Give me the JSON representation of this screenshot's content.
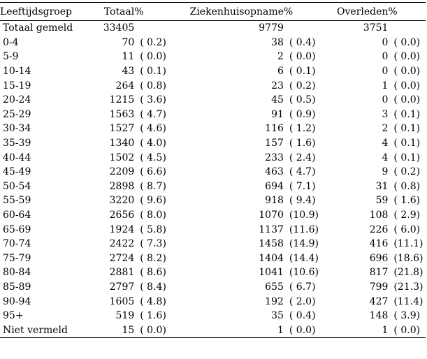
{
  "headers": {
    "group": "Leeftijdsgroep",
    "total": "Totaal",
    "total_pct": "%",
    "hospital": "Ziekenhuisopname",
    "hospital_pct": "%",
    "deceased": "Overleden",
    "deceased_pct": "%"
  },
  "rows": [
    {
      "group": "Totaal gemeld",
      "total": "33405",
      "total_pct": "",
      "hospital": "9779",
      "hospital_pct": "",
      "deceased": "3751",
      "deceased_pct": ""
    },
    {
      "group": "0-4",
      "total": "70",
      "total_pct": "( 0.2)",
      "hospital": "38",
      "hospital_pct": "( 0.4)",
      "deceased": "0",
      "deceased_pct": "( 0.0)"
    },
    {
      "group": "5-9",
      "total": "11",
      "total_pct": "( 0.0)",
      "hospital": "2",
      "hospital_pct": "( 0.0)",
      "deceased": "0",
      "deceased_pct": "( 0.0)"
    },
    {
      "group": "10-14",
      "total": "43",
      "total_pct": "( 0.1)",
      "hospital": "6",
      "hospital_pct": "( 0.1)",
      "deceased": "0",
      "deceased_pct": "( 0.0)"
    },
    {
      "group": "15-19",
      "total": "264",
      "total_pct": "( 0.8)",
      "hospital": "23",
      "hospital_pct": "( 0.2)",
      "deceased": "1",
      "deceased_pct": "( 0.0)"
    },
    {
      "group": "20-24",
      "total": "1215",
      "total_pct": "( 3.6)",
      "hospital": "45",
      "hospital_pct": "( 0.5)",
      "deceased": "0",
      "deceased_pct": "( 0.0)"
    },
    {
      "group": "25-29",
      "total": "1563",
      "total_pct": "( 4.7)",
      "hospital": "91",
      "hospital_pct": "( 0.9)",
      "deceased": "3",
      "deceased_pct": "( 0.1)"
    },
    {
      "group": "30-34",
      "total": "1527",
      "total_pct": "( 4.6)",
      "hospital": "116",
      "hospital_pct": "( 1.2)",
      "deceased": "2",
      "deceased_pct": "( 0.1)"
    },
    {
      "group": "35-39",
      "total": "1340",
      "total_pct": "( 4.0)",
      "hospital": "157",
      "hospital_pct": "( 1.6)",
      "deceased": "4",
      "deceased_pct": "( 0.1)"
    },
    {
      "group": "40-44",
      "total": "1502",
      "total_pct": "( 4.5)",
      "hospital": "233",
      "hospital_pct": "( 2.4)",
      "deceased": "4",
      "deceased_pct": "( 0.1)"
    },
    {
      "group": "45-49",
      "total": "2209",
      "total_pct": "( 6.6)",
      "hospital": "463",
      "hospital_pct": "( 4.7)",
      "deceased": "9",
      "deceased_pct": "( 0.2)"
    },
    {
      "group": "50-54",
      "total": "2898",
      "total_pct": "( 8.7)",
      "hospital": "694",
      "hospital_pct": "( 7.1)",
      "deceased": "31",
      "deceased_pct": "( 0.8)"
    },
    {
      "group": "55-59",
      "total": "3220",
      "total_pct": "( 9.6)",
      "hospital": "918",
      "hospital_pct": "( 9.4)",
      "deceased": "59",
      "deceased_pct": "( 1.6)"
    },
    {
      "group": "60-64",
      "total": "2656",
      "total_pct": "( 8.0)",
      "hospital": "1070",
      "hospital_pct": "(10.9)",
      "deceased": "108",
      "deceased_pct": "( 2.9)"
    },
    {
      "group": "65-69",
      "total": "1924",
      "total_pct": "( 5.8)",
      "hospital": "1137",
      "hospital_pct": "(11.6)",
      "deceased": "226",
      "deceased_pct": "( 6.0)"
    },
    {
      "group": "70-74",
      "total": "2422",
      "total_pct": "( 7.3)",
      "hospital": "1458",
      "hospital_pct": "(14.9)",
      "deceased": "416",
      "deceased_pct": "(11.1)"
    },
    {
      "group": "75-79",
      "total": "2724",
      "total_pct": "( 8.2)",
      "hospital": "1404",
      "hospital_pct": "(14.4)",
      "deceased": "696",
      "deceased_pct": "(18.6)"
    },
    {
      "group": "80-84",
      "total": "2881",
      "total_pct": "( 8.6)",
      "hospital": "1041",
      "hospital_pct": "(10.6)",
      "deceased": "817",
      "deceased_pct": "(21.8)"
    },
    {
      "group": "85-89",
      "total": "2797",
      "total_pct": "( 8.4)",
      "hospital": "655",
      "hospital_pct": "( 6.7)",
      "deceased": "799",
      "deceased_pct": "(21.3)"
    },
    {
      "group": "90-94",
      "total": "1605",
      "total_pct": "( 4.8)",
      "hospital": "192",
      "hospital_pct": "( 2.0)",
      "deceased": "427",
      "deceased_pct": "(11.4)"
    },
    {
      "group": "95+",
      "total": "519",
      "total_pct": "( 1.6)",
      "hospital": "35",
      "hospital_pct": "( 0.4)",
      "deceased": "148",
      "deceased_pct": "( 3.9)"
    },
    {
      "group": "Niet vermeld",
      "total": "15",
      "total_pct": "( 0.0)",
      "hospital": "1",
      "hospital_pct": "( 0.0)",
      "deceased": "1",
      "deceased_pct": "( 0.0)"
    }
  ]
}
